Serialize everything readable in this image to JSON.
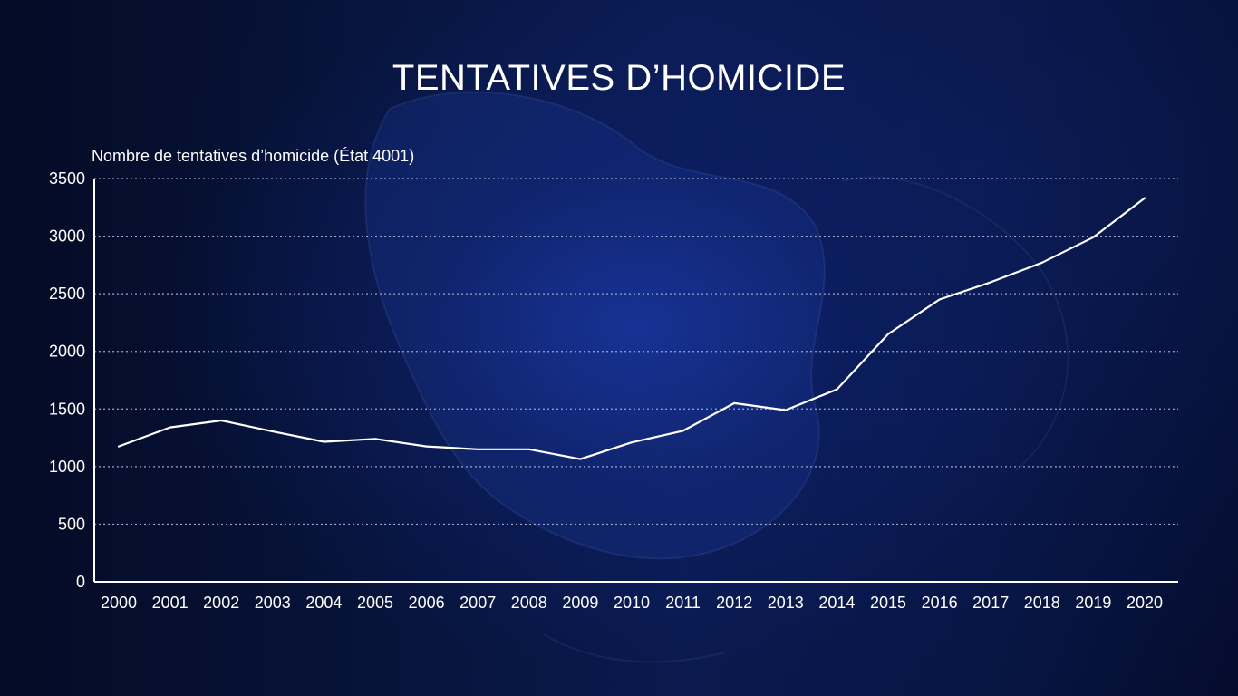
{
  "chart_data": {
    "type": "line",
    "title": "TENTATIVES D’HOMICIDE",
    "ylabel": "Nombre de tentatives d’homicide (État 4001)",
    "xlabel": "",
    "categories": [
      "2000",
      "2001",
      "2002",
      "2003",
      "2004",
      "2005",
      "2006",
      "2007",
      "2008",
      "2009",
      "2010",
      "2011",
      "2012",
      "2013",
      "2014",
      "2015",
      "2016",
      "2017",
      "2018",
      "2019",
      "2020"
    ],
    "series": [
      {
        "values": [
          1175,
          1340,
          1400,
          1305,
          1215,
          1240,
          1175,
          1150,
          1150,
          1065,
          1210,
          1310,
          1550,
          1490,
          1670,
          2150,
          2450,
          2600,
          2770,
          2990,
          3330
        ]
      }
    ],
    "ylim": [
      0,
      3500
    ],
    "yticks": [
      "0",
      "500",
      "1000",
      "1500",
      "2000",
      "2500",
      "3000",
      "3500"
    ],
    "grid": true,
    "grid_style": "dotted-horizontal",
    "legend": "none",
    "colors": {
      "line": "#ffffff",
      "grid": "#9aa6c8",
      "axis": "#ffffff",
      "background": "#0a1a4e"
    }
  }
}
